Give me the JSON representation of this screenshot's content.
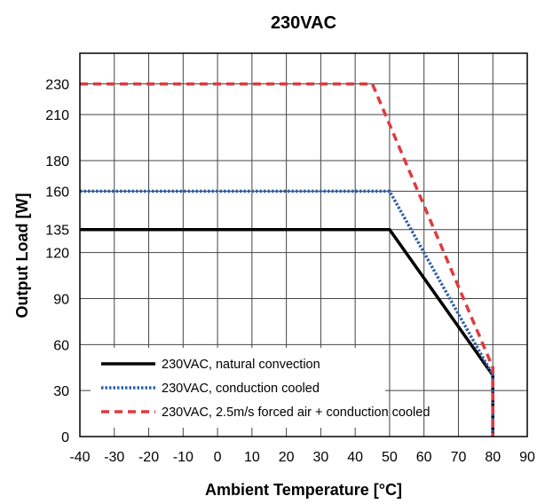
{
  "chart_data": {
    "type": "line",
    "title": "230VAC",
    "xlabel": "Ambient Temperature [°C]",
    "ylabel": "Output Load [W]",
    "xlim": [
      -40,
      90
    ],
    "ylim": [
      0,
      250
    ],
    "x_ticks": [
      -40,
      -30,
      -20,
      -10,
      0,
      10,
      20,
      30,
      40,
      50,
      60,
      70,
      80,
      90
    ],
    "y_ticks": [
      0,
      30,
      60,
      90,
      120,
      135,
      160,
      180,
      210,
      230
    ],
    "grid": true,
    "legend_position": "bottom-left",
    "series": [
      {
        "name": "230VAC, natural convection",
        "color": "#000000",
        "style": "solid",
        "points": [
          [
            -40,
            135
          ],
          [
            50,
            135
          ],
          [
            80,
            40
          ],
          [
            80,
            0
          ]
        ]
      },
      {
        "name": "230VAC, conduction cooled",
        "color": "#2e5ea8",
        "style": "dotted",
        "points": [
          [
            -40,
            160
          ],
          [
            50,
            160
          ],
          [
            80,
            40
          ],
          [
            80,
            0
          ]
        ]
      },
      {
        "name": "230VAC, 2.5m/s forced air + conduction cooled",
        "color": "#e03a3e",
        "style": "dashed",
        "points": [
          [
            -40,
            230
          ],
          [
            45,
            230
          ],
          [
            80,
            45
          ],
          [
            80,
            0
          ]
        ]
      }
    ]
  }
}
